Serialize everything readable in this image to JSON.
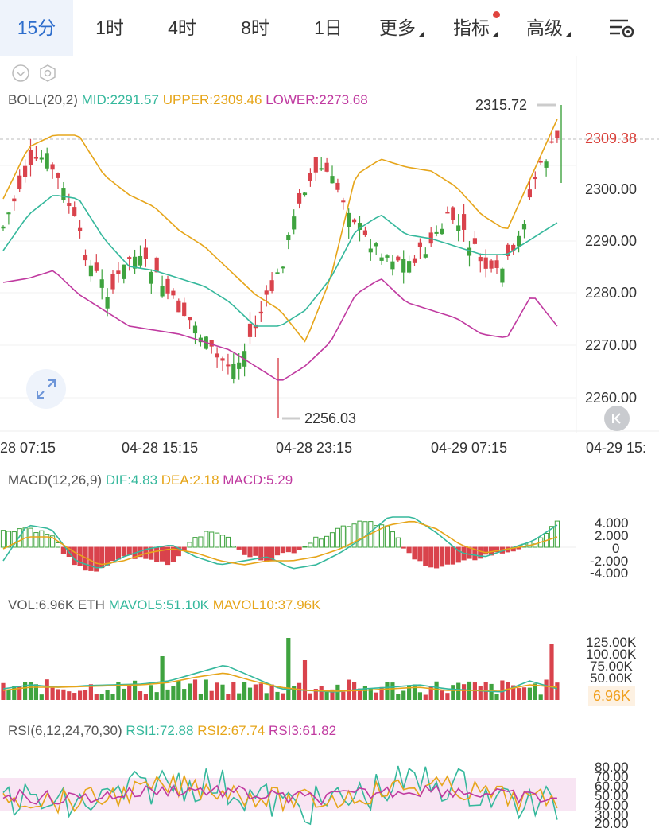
{
  "tabs": [
    {
      "label": "15分",
      "active": true
    },
    {
      "label": "1时"
    },
    {
      "label": "4时"
    },
    {
      "label": "8时"
    },
    {
      "label": "1日"
    },
    {
      "label": "更多"
    },
    {
      "label": "指标"
    },
    {
      "label": "高级"
    }
  ],
  "boll": {
    "name": "BOLL(20,2)",
    "mid": "MID:2291.57",
    "upper": "UPPER:2309.46",
    "lower": "LOWER:2273.68",
    "price_ticks": [
      "2300.00",
      "2290.00",
      "2280.00",
      "2270.00",
      "2260.00"
    ],
    "current_price": "2309.38",
    "high_label": "2315.72",
    "low_label": "2256.03"
  },
  "time_labels": [
    "28 07:15",
    "04-28 15:15",
    "04-28 23:15",
    "04-29 07:15",
    "04-29 15:"
  ],
  "macd": {
    "name": "MACD(12,26,9)",
    "dif": "DIF:4.83",
    "dea": "DEA:2.18",
    "macd": "MACD:5.29",
    "ticks": [
      "4.000",
      "2.000",
      "0",
      "-2.000",
      "-4.000"
    ]
  },
  "vol": {
    "name": "VOL:6.96K ETH",
    "mavol5": "MAVOL5:51.10K",
    "mavol10": "MAVOL10:37.96K",
    "ticks": [
      "125.00K",
      "100.00K",
      "75.00K",
      "50.00K"
    ],
    "current": "6.96K"
  },
  "rsi": {
    "name": "RSI(6,12,24,70,30)",
    "rsi1": "RSI1:72.88",
    "rsi2": "RSI2:67.74",
    "rsi3": "RSI3:61.82",
    "ticks": [
      "80.00",
      "70.00",
      "60.00",
      "50.00",
      "40.00",
      "30.00",
      "20.00"
    ]
  },
  "colors": {
    "up": "#3fa33f",
    "down": "#d9434c",
    "mid": "#35b89c",
    "upper": "#e6a51a",
    "lower": "#c03aa0",
    "active_tab": "#2d6dcc"
  },
  "icons": [
    "chevron-down-icon",
    "settings-icon",
    "expand-icon",
    "chart-settings-icon",
    "back-to-start-icon"
  ]
}
